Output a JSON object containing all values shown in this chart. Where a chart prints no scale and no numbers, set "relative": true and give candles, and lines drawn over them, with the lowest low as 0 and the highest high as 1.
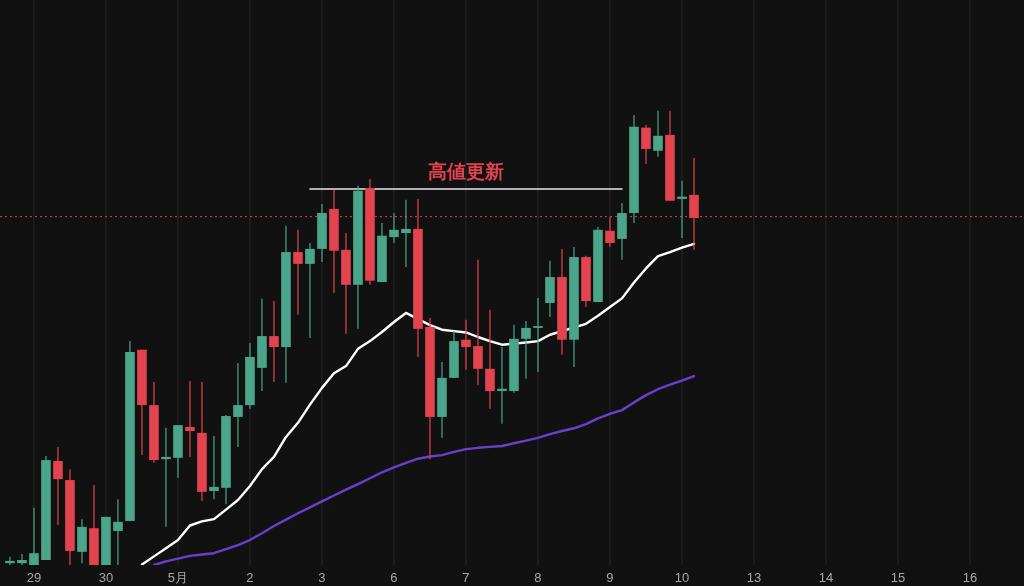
{
  "chart_data": {
    "type": "candlestick",
    "relative": true,
    "grid": "x",
    "categories": [
      null,
      null,
      "29",
      null,
      null,
      null,
      null,
      null,
      "30",
      null,
      null,
      null,
      null,
      null,
      "5月",
      null,
      null,
      null,
      null,
      null,
      "2",
      null,
      null,
      null,
      null,
      null,
      "3",
      null,
      null,
      null,
      null,
      null,
      "6",
      null,
      null,
      null,
      null,
      null,
      "7",
      null,
      null,
      null,
      null,
      null,
      "8",
      null,
      null,
      null,
      null,
      null,
      "9",
      null,
      null,
      null,
      null,
      null,
      "10",
      null,
      null,
      null,
      null,
      null,
      "13",
      null,
      null,
      null,
      null,
      null,
      "14",
      null,
      null,
      null,
      null,
      null,
      "15",
      null,
      null,
      null,
      null,
      null,
      "16",
      null,
      null,
      null,
      null
    ],
    "ref_lines": [
      {
        "axis": "y",
        "value": 0.767,
        "color": "#e2434f",
        "line_style": "dotted"
      }
    ],
    "series": [
      {
        "ohlc": [
          [
            0.004,
            0.018,
            0,
            0.009
          ],
          [
            0.004,
            0.024,
            0,
            0.011
          ],
          [
            0,
            0.126,
            0,
            0.026
          ],
          [
            0.011,
            0.24,
            0.011,
            0.231
          ],
          [
            0.229,
            0.26,
            0.088,
            0.189
          ],
          [
            0.187,
            0.211,
            0,
            0.031
          ],
          [
            0.029,
            0.101,
            0.004,
            0.084
          ],
          [
            0.081,
            0.176,
            0,
            0
          ],
          [
            0,
            0.106,
            0,
            0.106
          ],
          [
            0.075,
            0.145,
            0,
            0.095
          ],
          [
            0.097,
            0.493,
            0.097,
            0.469
          ],
          [
            0.474,
            0.474,
            0.242,
            0.352
          ],
          [
            0.352,
            0.403,
            0.225,
            0.231
          ],
          [
            0.233,
            0.302,
            0.084,
            0.238
          ],
          [
            0.236,
            0.308,
            0.192,
            0.308
          ],
          [
            0.304,
            0.405,
            0.238,
            0.295
          ],
          [
            0.291,
            0.403,
            0.141,
            0.161
          ],
          [
            0.163,
            0.284,
            0.145,
            0.172
          ],
          [
            0.17,
            0.33,
            0.134,
            0.328
          ],
          [
            0.326,
            0.445,
            0.26,
            0.352
          ],
          [
            0.352,
            0.489,
            0.344,
            0.458
          ],
          [
            0.434,
            0.586,
            0.383,
            0.504
          ],
          [
            0.504,
            0.581,
            0.403,
            0.48
          ],
          [
            0.48,
            0.747,
            0.401,
            0.689
          ],
          [
            0.689,
            0.738,
            0.551,
            0.663
          ],
          [
            0.663,
            0.709,
            0.5,
            0.696
          ],
          [
            0.696,
            0.795,
            0.667,
            0.775
          ],
          [
            0.784,
            0.826,
            0.599,
            0.692
          ],
          [
            0.694,
            0.731,
            0.509,
            0.617
          ],
          [
            0.617,
            0.835,
            0.52,
            0.824
          ],
          [
            0.83,
            0.85,
            0.617,
            0.626
          ],
          [
            0.623,
            0.753,
            0.623,
            0.725
          ],
          [
            0.722,
            0.775,
            0.709,
            0.738
          ],
          [
            0.731,
            0.804,
            0.656,
            0.74
          ],
          [
            0.74,
            0.806,
            0.458,
            0.52
          ],
          [
            0.524,
            0.544,
            0.233,
            0.326
          ],
          [
            0.326,
            0.447,
            0.28,
            0.412
          ],
          [
            0.412,
            0.515,
            0.412,
            0.493
          ],
          [
            0.496,
            0.54,
            0.43,
            0.48
          ],
          [
            0.482,
            0.672,
            0.396,
            0.432
          ],
          [
            0.432,
            0.562,
            0.344,
            0.383
          ],
          [
            0.383,
            0.48,
            0.311,
            0.388
          ],
          [
            0.383,
            0.529,
            0.379,
            0.498
          ],
          [
            0.498,
            0.537,
            0.41,
            0.522
          ],
          [
            0.522,
            0.588,
            0.425,
            0.526
          ],
          [
            0.577,
            0.67,
            0.546,
            0.634
          ],
          [
            0.634,
            0.696,
            0.463,
            0.496
          ],
          [
            0.496,
            0.7,
            0.436,
            0.678
          ],
          [
            0.678,
            0.681,
            0.568,
            0.581
          ],
          [
            0.579,
            0.744,
            0.579,
            0.738
          ],
          [
            0.736,
            0.767,
            0.7,
            0.709
          ],
          [
            0.718,
            0.797,
            0.672,
            0.775
          ],
          [
            0.775,
            0.991,
            0.753,
            0.965
          ],
          [
            0.963,
            0.969,
            0.883,
            0.916
          ],
          [
            0.912,
            1,
            0.899,
            0.945
          ],
          [
            0.947,
            1,
            0.802,
            0.802
          ],
          [
            0.806,
            0.846,
            0.72,
            0.811
          ],
          [
            0.815,
            0.896,
            0.694,
            0.764
          ],
          null,
          null,
          null,
          null,
          null,
          null,
          null,
          null,
          null,
          null,
          null,
          null,
          null,
          null,
          null,
          null,
          null,
          null,
          null,
          null,
          null,
          null,
          null,
          null,
          null,
          null,
          null
        ],
        "colors": [
          "#4aa58a",
          "#4aa58a",
          "#4aa58a",
          "#4aa58a",
          "#e2434f",
          "#e2434f",
          "#4aa58a",
          "#e2434f",
          "#4aa58a",
          "#4aa58a",
          "#4aa58a",
          "#e2434f",
          "#e2434f",
          "#4aa58a",
          "#4aa58a",
          "#e2434f",
          "#e2434f",
          "#4aa58a",
          "#4aa58a",
          "#4aa58a",
          "#4aa58a",
          "#4aa58a",
          "#e2434f",
          "#4aa58a",
          "#e2434f",
          "#4aa58a",
          "#4aa58a",
          "#e2434f",
          "#e2434f",
          "#4aa58a",
          "#e2434f",
          "#4aa58a",
          "#4aa58a",
          "#4aa58a",
          "#e2434f",
          "#e2434f",
          "#4aa58a",
          "#4aa58a",
          "#e2434f",
          "#e2434f",
          "#e2434f",
          "#4aa58a",
          "#4aa58a",
          "#4aa58a",
          "#4aa58a",
          "#4aa58a",
          "#e2434f",
          "#4aa58a",
          "#e2434f",
          "#4aa58a",
          "#e2434f",
          "#4aa58a",
          "#4aa58a",
          "#e2434f",
          "#4aa58a",
          "#e2434f",
          "#4aa58a",
          "#e2434f",
          null,
          null,
          null,
          null,
          null,
          null,
          null,
          null,
          null,
          null,
          null,
          null,
          null,
          null,
          null,
          null,
          null,
          null,
          null,
          null,
          null,
          null,
          null,
          null,
          null,
          null,
          null
        ]
      },
      {
        "type": "line",
        "color": "#ffffff",
        "values": [
          null,
          null,
          null,
          null,
          null,
          null,
          null,
          null,
          null,
          null,
          null,
          0.001,
          0.019,
          0.037,
          0.055,
          0.087,
          0.096,
          0.101,
          0.122,
          0.143,
          0.174,
          0.211,
          0.238,
          0.282,
          0.313,
          0.353,
          0.39,
          0.422,
          0.438,
          0.476,
          0.493,
          0.513,
          0.535,
          0.555,
          null,
          0.528,
          0.518,
          0.515,
          0.512,
          0.502,
          0.493,
          0.485,
          null,
          0.49,
          0.493,
          0.507,
          null,
          null,
          0.531,
          0.549,
          0.568,
          0.587,
          0.622,
          0.653,
          0.68,
          0.689,
          0.699,
          0.707,
          null,
          null,
          null,
          null,
          null,
          null,
          null,
          null,
          null,
          null,
          null,
          null,
          null,
          null,
          null,
          null,
          null,
          null,
          null,
          null,
          null,
          null,
          null,
          null,
          null,
          null,
          null
        ]
      },
      {
        "type": "line",
        "color": "#6a3fd0",
        "values": [
          null,
          null,
          null,
          null,
          null,
          null,
          null,
          null,
          null,
          null,
          null,
          null,
          0,
          0.008,
          0.014,
          0.02,
          0.023,
          0.026,
          0.035,
          0.044,
          0.055,
          0.07,
          0.086,
          0.1,
          0.114,
          0.127,
          0.14,
          0.153,
          0.166,
          0.178,
          0.191,
          0.204,
          0.215,
          0.225,
          0.234,
          0.239,
          0.242,
          0.249,
          0.255,
          0.258,
          0.26,
          0.262,
          0.268,
          0.274,
          0.28,
          0.288,
          0.295,
          0.301,
          0.31,
          0.323,
          0.333,
          0.341,
          0.358,
          0.374,
          0.387,
          0.397,
          0.406,
          0.416,
          null,
          null,
          null,
          null,
          null,
          null,
          null,
          null,
          null,
          null,
          null,
          null,
          null,
          null,
          null,
          null,
          null,
          null,
          null,
          null,
          null,
          null,
          null,
          null,
          null,
          null,
          null
        ]
      },
      {
        "type": "line",
        "name": "高値更新",
        "color": "#e8e8e8",
        "values": [
          null,
          null,
          null,
          null,
          null,
          null,
          null,
          null,
          null,
          null,
          null,
          null,
          null,
          null,
          null,
          null,
          null,
          null,
          null,
          null,
          null,
          null,
          null,
          null,
          null,
          0.828,
          0.828,
          0.828,
          0.828,
          0.828,
          null,
          0.828,
          0.828,
          0.828,
          0.828,
          0.828,
          0.828,
          0.828,
          0.828,
          0.828,
          0.828,
          0.828,
          0.828,
          0.828,
          0.828,
          0.828,
          0.828,
          0.828,
          0.828,
          0.828,
          0.828,
          0.828,
          null,
          null,
          null,
          null,
          null,
          null,
          null,
          null,
          null,
          null,
          null,
          null,
          null,
          null,
          null,
          null,
          null,
          null,
          null,
          null,
          null,
          null,
          null,
          null,
          null,
          null,
          null,
          null,
          null,
          null,
          null,
          null,
          null
        ]
      }
    ]
  }
}
